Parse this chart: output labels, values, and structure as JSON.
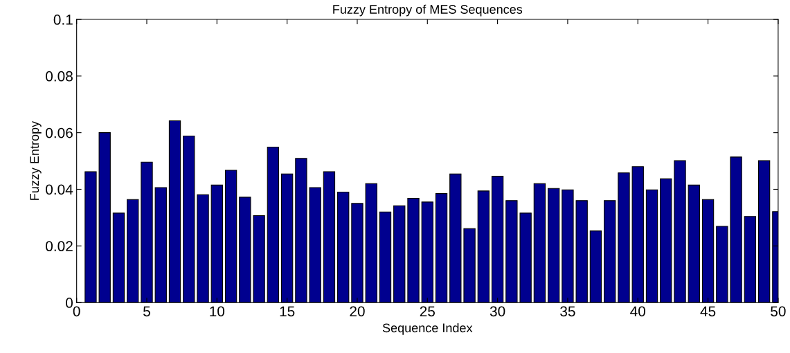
{
  "chart_data": {
    "type": "bar",
    "title": "Fuzzy Entropy of MES Sequences",
    "xlabel": "Sequence Index",
    "ylabel": "Fuzzy Entropy",
    "x": [
      1,
      2,
      3,
      4,
      5,
      6,
      7,
      8,
      9,
      10,
      11,
      12,
      13,
      14,
      15,
      16,
      17,
      18,
      19,
      20,
      21,
      22,
      23,
      24,
      25,
      26,
      27,
      28,
      29,
      30,
      31,
      32,
      33,
      34,
      35,
      36,
      37,
      38,
      39,
      40,
      41,
      42,
      43,
      44,
      45,
      46,
      47,
      48,
      49,
      50
    ],
    "values": [
      0.0462,
      0.06,
      0.0316,
      0.0364,
      0.0496,
      0.0406,
      0.0642,
      0.0588,
      0.0381,
      0.0415,
      0.0467,
      0.0372,
      0.0307,
      0.0549,
      0.0454,
      0.0509,
      0.0406,
      0.0462,
      0.039,
      0.035,
      0.042,
      0.032,
      0.0342,
      0.0368,
      0.0355,
      0.0385,
      0.0454,
      0.0261,
      0.0394,
      0.0446,
      0.036,
      0.0316,
      0.042,
      0.0403,
      0.0398,
      0.036,
      0.0253,
      0.036,
      0.0458,
      0.048,
      0.0398,
      0.0437,
      0.0501,
      0.0415,
      0.0364,
      0.0269,
      0.0514,
      0.0304,
      0.0501,
      0.0321
    ],
    "color": "#00008f",
    "xlim": [
      0,
      50
    ],
    "xticks": [
      0,
      5,
      10,
      15,
      20,
      25,
      30,
      35,
      40,
      45,
      50
    ],
    "ylim": [
      0,
      0.1
    ],
    "yticks": [
      0,
      0.02,
      0.04,
      0.06,
      0.08,
      0.1
    ],
    "grid": false,
    "legend": false
  }
}
